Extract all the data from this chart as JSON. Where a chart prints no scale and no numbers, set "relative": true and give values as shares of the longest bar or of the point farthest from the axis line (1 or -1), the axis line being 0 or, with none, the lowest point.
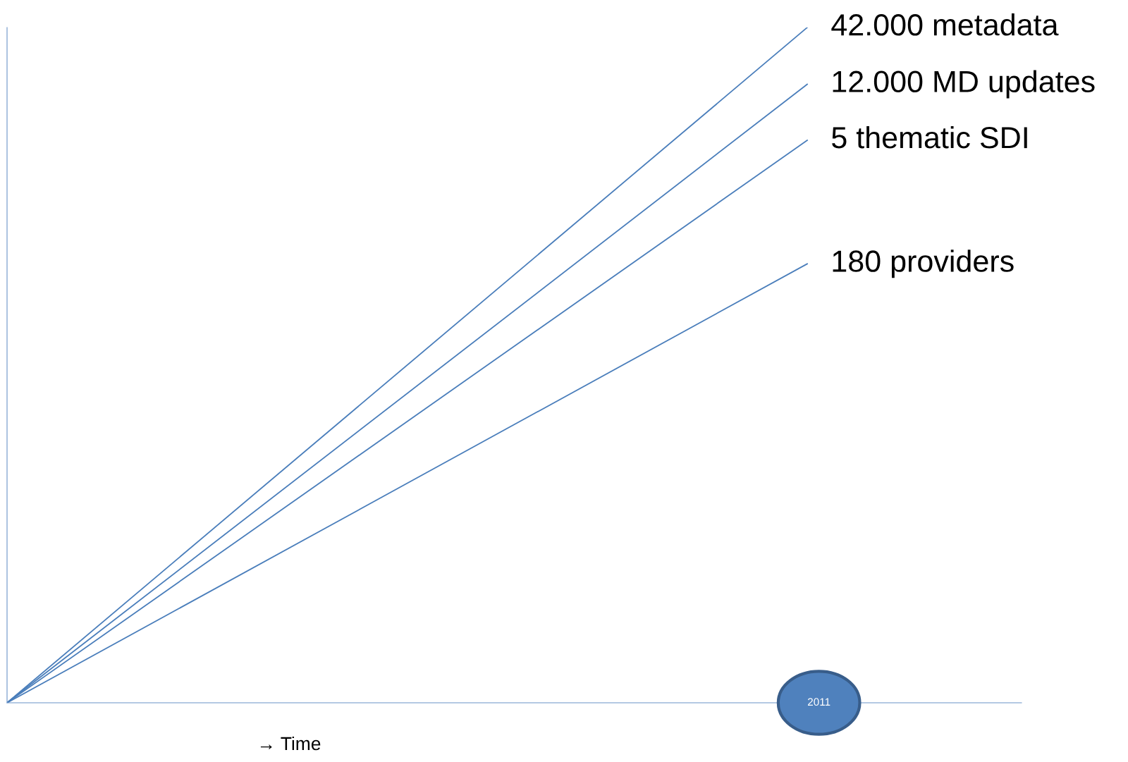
{
  "chart_data": {
    "type": "line",
    "relative": true,
    "xlabel": "→ Time",
    "categories": [
      null,
      null
    ],
    "annotations": [
      "2011"
    ],
    "series": [
      {
        "name": "42.000 metadata",
        "color": "#4a7ebb",
        "values": [
          0,
          1
        ]
      },
      {
        "name": "12.000 MD updates",
        "color": "#4a7ebb",
        "values": [
          0,
          0.916
        ]
      },
      {
        "name": "5 thematic SDI",
        "color": "#4a7ebb",
        "values": [
          0,
          0.833
        ]
      },
      {
        "name": "180 providers",
        "color": "#4a7ebb",
        "values": [
          0,
          0.65
        ]
      }
    ]
  }
}
